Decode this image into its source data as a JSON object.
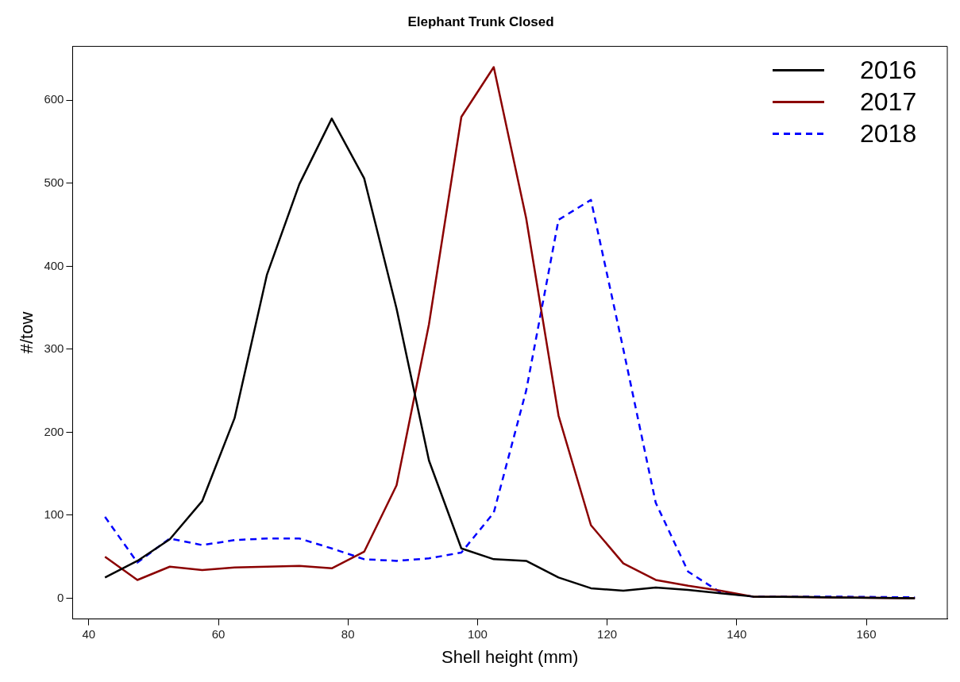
{
  "chart_data": {
    "type": "line",
    "title": "Elephant Trunk Closed",
    "xlabel": "Shell height (mm)",
    "ylabel": "#/tow",
    "x": [
      42.5,
      47.5,
      52.5,
      57.5,
      62.5,
      67.5,
      72.5,
      77.5,
      82.5,
      87.5,
      92.5,
      97.5,
      102.5,
      107.5,
      112.5,
      117.5,
      122.5,
      127.5,
      132.5,
      137.5,
      142.5,
      155,
      167.5
    ],
    "series": [
      {
        "name": "2016",
        "color": "#000000",
        "line_style": "solid",
        "values": [
          25,
          45,
          71,
          117,
          217,
          390,
          499,
          578,
          506,
          349,
          166,
          60,
          47,
          45,
          25,
          12,
          9,
          13,
          10,
          6,
          2,
          1,
          0
        ]
      },
      {
        "name": "2017",
        "color": "#8b0000",
        "line_style": "solid",
        "values": [
          50,
          22,
          38,
          34,
          37,
          38,
          39,
          36,
          56,
          136,
          330,
          580,
          640,
          458,
          220,
          88,
          42,
          22,
          15,
          9,
          2,
          1,
          0
        ]
      },
      {
        "name": "2018",
        "color": "#0000ff",
        "line_style": "dashed",
        "values": [
          98,
          43,
          72,
          64,
          70,
          72,
          72,
          60,
          47,
          45,
          48,
          55,
          103,
          250,
          456,
          480,
          300,
          115,
          32,
          7,
          2,
          2,
          1
        ]
      }
    ],
    "xlim": [
      37.5,
      172.5
    ],
    "xticks": [
      40,
      60,
      80,
      100,
      120,
      140,
      160
    ],
    "ylim": [
      -25,
      665
    ],
    "yticks": [
      0,
      100,
      200,
      300,
      400,
      500,
      600
    ],
    "grid": false,
    "legend": "top right",
    "marker": "none"
  }
}
